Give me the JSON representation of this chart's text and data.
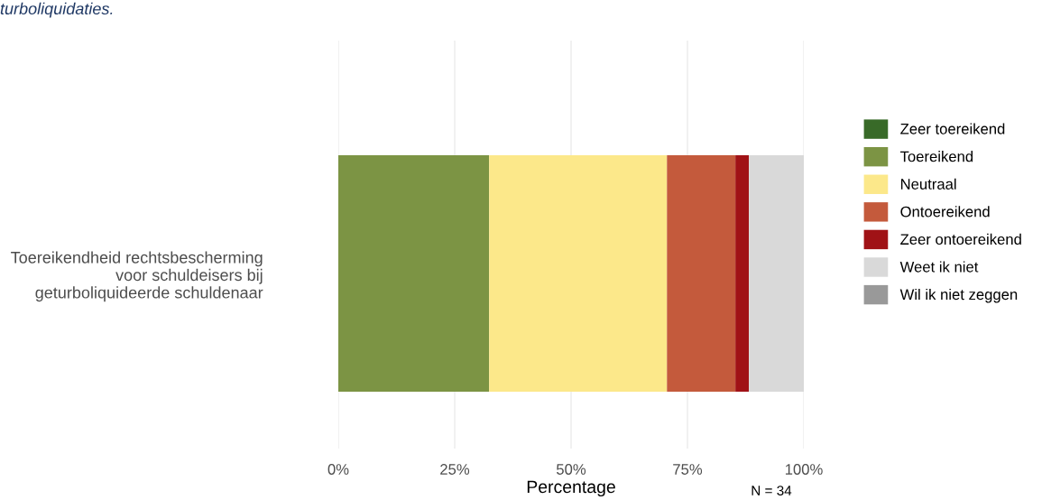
{
  "chart_data": {
    "type": "bar",
    "orientation": "horizontal",
    "stacked": true,
    "categories": [
      "Toereikendheid rechtsbescherming\nvoor schuldeisers bij\ngeturboliquideerde schuldenaar"
    ],
    "series": [
      {
        "name": "Zeer toereikend",
        "color": "#386a28",
        "values": [
          0
        ]
      },
      {
        "name": "Toereikend",
        "color": "#7c9444",
        "values": [
          32.4
        ]
      },
      {
        "name": "Neutraal",
        "color": "#fce88a",
        "values": [
          38.2
        ]
      },
      {
        "name": "Ontoereikend",
        "color": "#c45a3c",
        "values": [
          14.7
        ]
      },
      {
        "name": "Zeer ontoereikend",
        "color": "#a01216",
        "values": [
          2.9
        ]
      },
      {
        "name": "Weet ik niet",
        "color": "#d9d9d9",
        "values": [
          11.8
        ]
      },
      {
        "name": "Wil ik niet zeggen",
        "color": "#999999",
        "values": [
          0
        ]
      }
    ],
    "xlabel": "Percentage",
    "xlim": [
      0,
      100
    ],
    "xticks": [
      {
        "value": 0,
        "label": "0%"
      },
      {
        "value": 25,
        "label": "25%"
      },
      {
        "value": 50,
        "label": "50%"
      },
      {
        "value": 75,
        "label": "75%"
      },
      {
        "value": 100,
        "label": "100%"
      }
    ],
    "grid": "x",
    "legend": "right",
    "annotations": [
      "turboliquidaties.",
      "N = 34"
    ]
  }
}
